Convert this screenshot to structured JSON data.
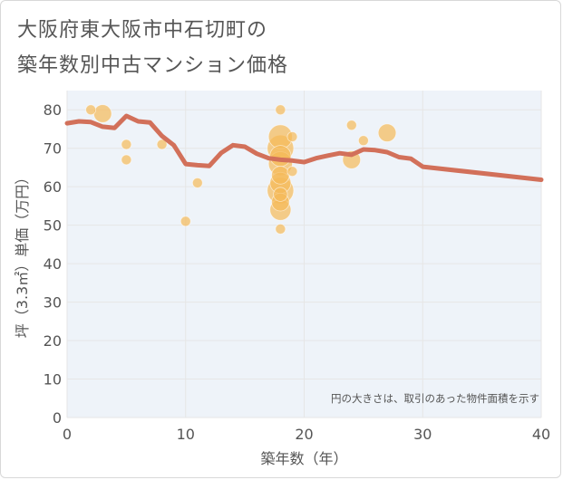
{
  "title_line1": "大阪府東大阪市中石切町の",
  "title_line2": "築年数別中古マンション価格",
  "chart_data": {
    "type": "scatter",
    "xlabel": "築年数（年）",
    "ylabel": "坪（3.3㎡）単価（万円）",
    "xlim": [
      0,
      40
    ],
    "ylim": [
      0,
      85
    ],
    "xticks": [
      0,
      10,
      20,
      30,
      40
    ],
    "yticks": [
      0,
      10,
      20,
      30,
      40,
      50,
      60,
      70,
      80
    ],
    "grid": true,
    "note": "円の大きさは、取引のあった物件面積を示す",
    "colors": {
      "bubble": "#f5b958",
      "line": "#d2705a",
      "grid": "#e6e6e6",
      "plot_bg": "#eef3f9"
    },
    "bubbles": [
      {
        "x": 2,
        "y": 80,
        "size": 1
      },
      {
        "x": 3,
        "y": 79,
        "size": 3
      },
      {
        "x": 5,
        "y": 71,
        "size": 1
      },
      {
        "x": 5,
        "y": 67,
        "size": 1
      },
      {
        "x": 8,
        "y": 71,
        "size": 1
      },
      {
        "x": 10,
        "y": 51,
        "size": 1
      },
      {
        "x": 11,
        "y": 61,
        "size": 1
      },
      {
        "x": 18,
        "y": 80,
        "size": 1
      },
      {
        "x": 18,
        "y": 73,
        "size": 5
      },
      {
        "x": 18,
        "y": 70,
        "size": 6
      },
      {
        "x": 18,
        "y": 68,
        "size": 4
      },
      {
        "x": 18,
        "y": 66,
        "size": 5
      },
      {
        "x": 18,
        "y": 63,
        "size": 3
      },
      {
        "x": 18,
        "y": 61,
        "size": 4
      },
      {
        "x": 18,
        "y": 59,
        "size": 6
      },
      {
        "x": 18,
        "y": 58,
        "size": 2
      },
      {
        "x": 18,
        "y": 56,
        "size": 3
      },
      {
        "x": 18,
        "y": 54,
        "size": 4
      },
      {
        "x": 18,
        "y": 49,
        "size": 1
      },
      {
        "x": 19,
        "y": 73,
        "size": 1
      },
      {
        "x": 19,
        "y": 64,
        "size": 1
      },
      {
        "x": 24,
        "y": 76,
        "size": 1
      },
      {
        "x": 24,
        "y": 67,
        "size": 3
      },
      {
        "x": 25,
        "y": 72,
        "size": 1
      },
      {
        "x": 27,
        "y": 74,
        "size": 3
      }
    ],
    "trend_line": {
      "x": [
        0,
        1,
        2,
        3,
        4,
        5,
        6,
        7,
        8,
        9,
        10,
        11,
        12,
        13,
        14,
        15,
        16,
        17,
        18,
        19,
        20,
        21,
        22,
        23,
        24,
        25,
        26,
        27,
        28,
        29,
        30,
        40
      ],
      "y": [
        76.5,
        77,
        76.8,
        75.6,
        75.3,
        78.4,
        77,
        76.7,
        73.2,
        70.8,
        65.9,
        65.6,
        65.4,
        68.8,
        70.8,
        70.4,
        68.6,
        67.4,
        67,
        66.8,
        66.4,
        67.4,
        68.1,
        68.7,
        68.3,
        69.7,
        69.5,
        69,
        67.7,
        67.3,
        65.2,
        61.8
      ]
    }
  }
}
